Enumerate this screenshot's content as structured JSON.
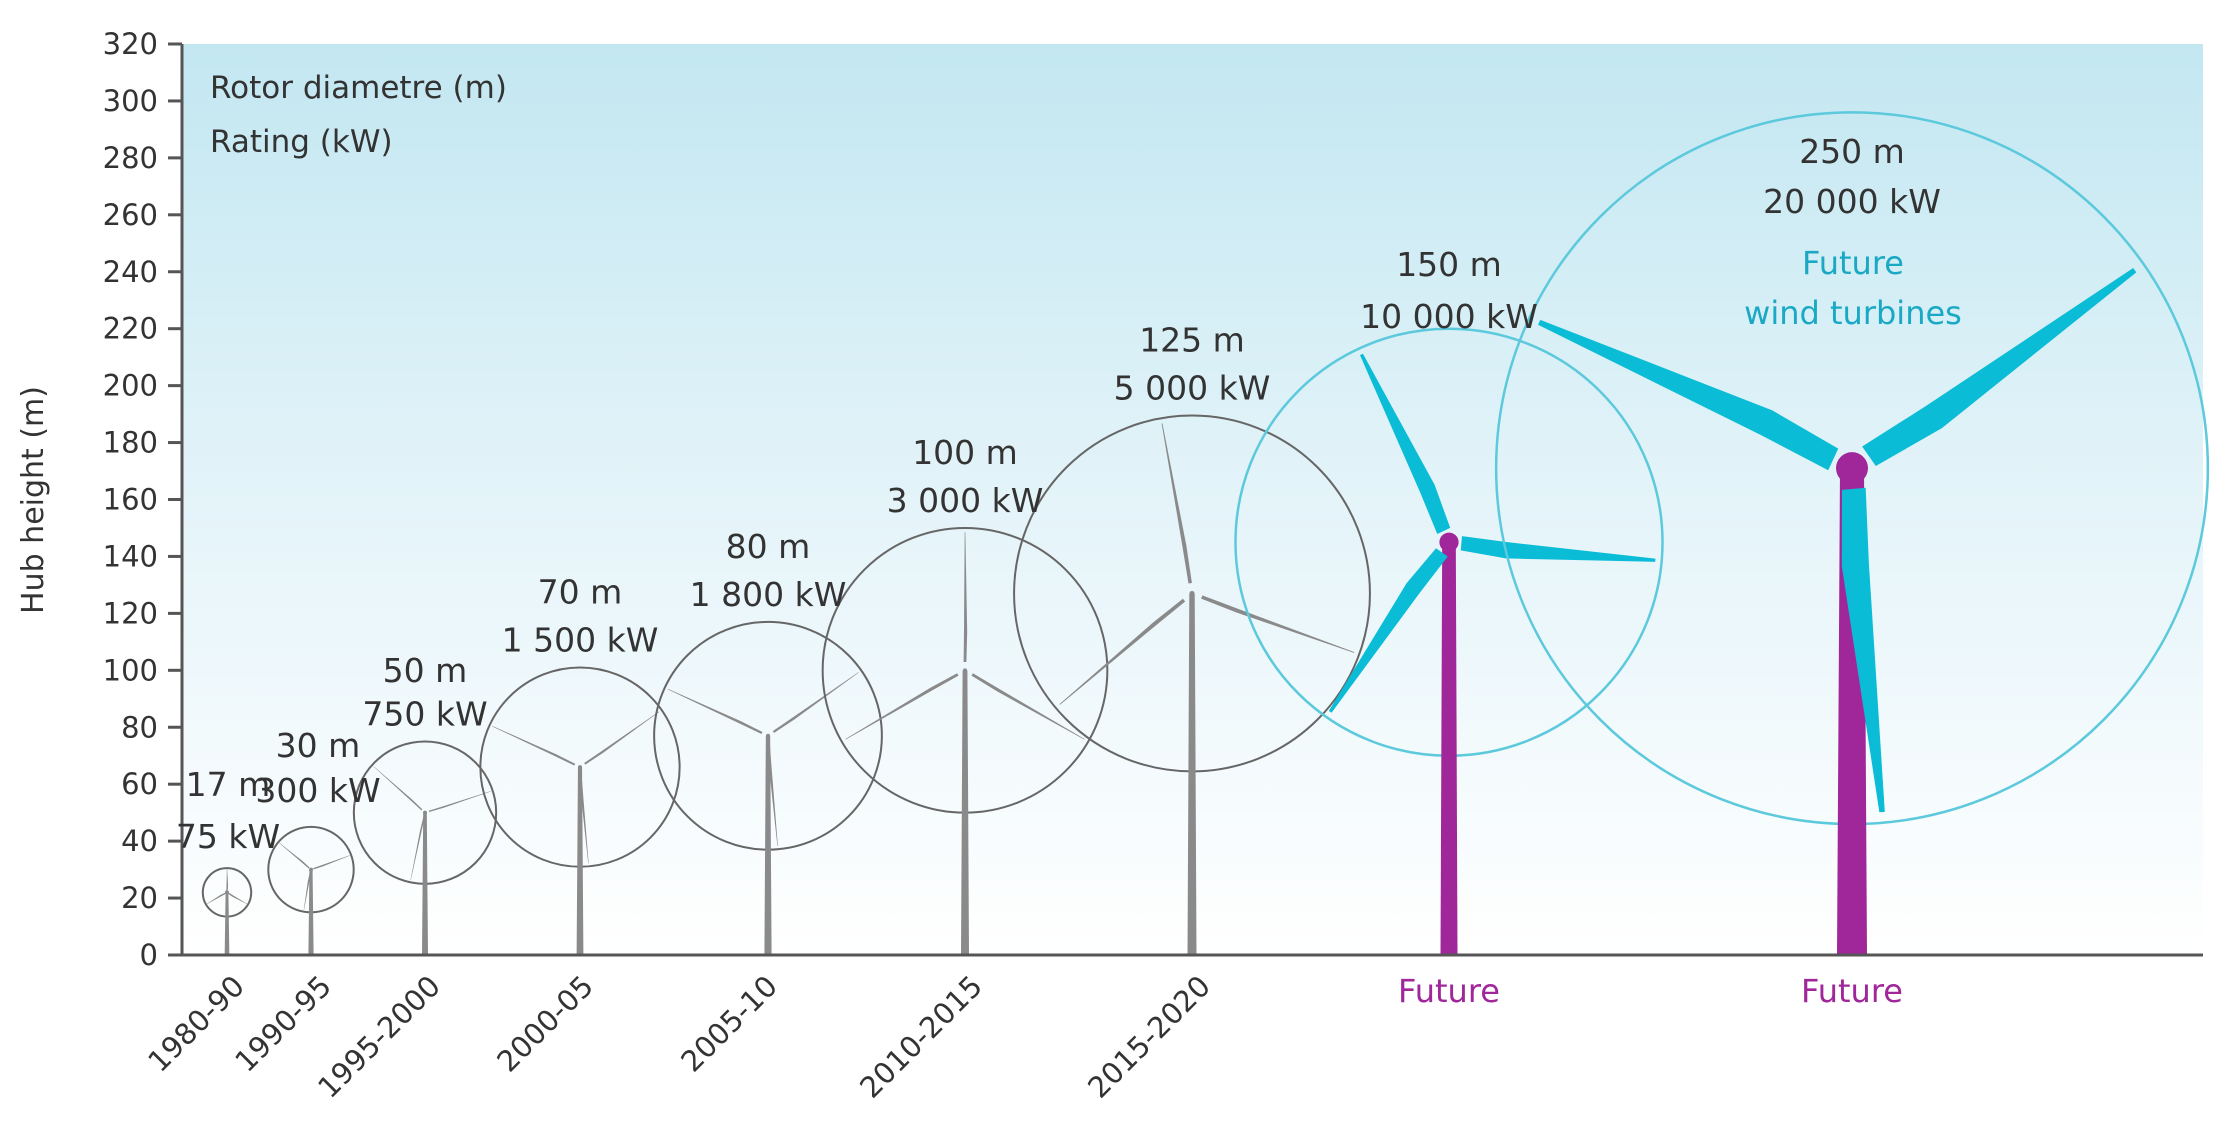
{
  "chart_data": {
    "type": "scatter",
    "legend": {
      "lines": [
        "Rotor diametre (m)",
        "Rating (kW)"
      ],
      "placement": "top-left"
    },
    "ylabel": "Hub height (m)",
    "xlabel": "",
    "ylim": [
      0,
      320
    ],
    "yticks": [
      0,
      20,
      40,
      60,
      80,
      100,
      120,
      140,
      160,
      180,
      200,
      220,
      240,
      260,
      280,
      300,
      320
    ],
    "grid": false,
    "turbines": [
      {
        "period": "1980-90",
        "hub_height": 22,
        "rotor_diameter": 17,
        "rating_kw": 75,
        "diameter_label": "17 m",
        "rating_label": "75 kW",
        "future": false
      },
      {
        "period": "1990-95",
        "hub_height": 30,
        "rotor_diameter": 30,
        "rating_kw": 300,
        "diameter_label": "30 m",
        "rating_label": "300 kW",
        "future": false
      },
      {
        "period": "1995-2000",
        "hub_height": 50,
        "rotor_diameter": 50,
        "rating_kw": 750,
        "diameter_label": "50 m",
        "rating_label": "750 kW",
        "future": false
      },
      {
        "period": "2000-05",
        "hub_height": 66,
        "rotor_diameter": 70,
        "rating_kw": 1500,
        "diameter_label": "70 m",
        "rating_label": "1 500 kW",
        "future": false
      },
      {
        "period": "2005-10",
        "hub_height": 77,
        "rotor_diameter": 80,
        "rating_kw": 1800,
        "diameter_label": "80 m",
        "rating_label": "1 800 kW",
        "future": false
      },
      {
        "period": "2010-2015",
        "hub_height": 100,
        "rotor_diameter": 100,
        "rating_kw": 3000,
        "diameter_label": "100 m",
        "rating_label": "3 000 kW",
        "future": false
      },
      {
        "period": "2015-2020",
        "hub_height": 127,
        "rotor_diameter": 125,
        "rating_kw": 5000,
        "diameter_label": "125 m",
        "rating_label": "5 000 kW",
        "future": false
      },
      {
        "period": "Future",
        "hub_height": 145,
        "rotor_diameter": 150,
        "rating_kw": 10000,
        "diameter_label": "150 m",
        "rating_label": "10 000 kW",
        "future": true
      },
      {
        "period": "Future",
        "hub_height": 171,
        "rotor_diameter": 250,
        "rating_kw": 20000,
        "diameter_label": "250 m",
        "rating_label": "20 000 kW",
        "future": true
      }
    ],
    "annotation": {
      "lines": [
        "Future",
        "wind turbines"
      ]
    }
  },
  "colors": {
    "axis": "#555555",
    "text": "#333333",
    "current_turbine": "#8a8a8a",
    "current_rotor_circle": "#666666",
    "future_blade": "#0bbcd6",
    "future_circle": "#5cc9dc",
    "future_tower": "#a0279a",
    "future_label": "#a0279a",
    "annotation": "#1aa9c4",
    "sky_top": "#c3e7f1",
    "sky_bottom": "#ffffff"
  }
}
